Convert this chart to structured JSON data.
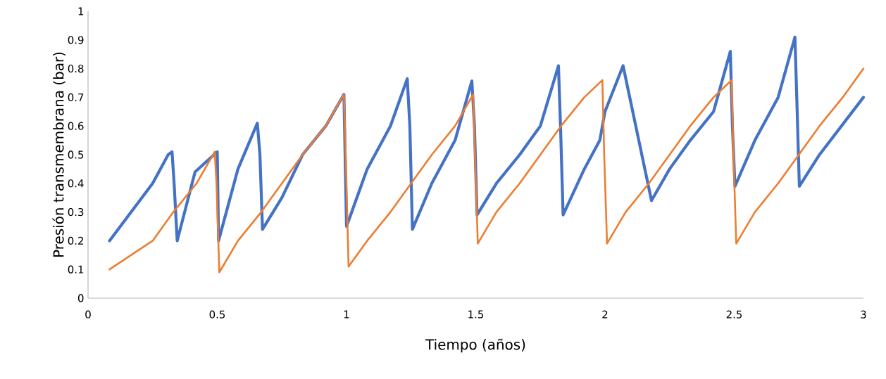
{
  "chart_data": {
    "type": "line",
    "xlabel": "Tiempo (años)",
    "ylabel": "Presión transmembrana (bar)",
    "xlim": [
      0,
      3
    ],
    "ylim": [
      0,
      1
    ],
    "xticks": [
      0,
      0.5,
      1,
      1.5,
      2,
      2.5,
      3
    ],
    "yticks": [
      0,
      0.1,
      0.2,
      0.3,
      0.4,
      0.5,
      0.6,
      0.7,
      0.8,
      0.9,
      1
    ],
    "grid": false,
    "legend": false,
    "line_style": "solid",
    "marker": "none",
    "series": [
      {
        "color": "#4472c4",
        "x": [
          0.083,
          0.25,
          0.31,
          0.325,
          0.333,
          0.345,
          0.414,
          0.5,
          0.505,
          0.58,
          0.655,
          0.665,
          0.675,
          0.75,
          0.83,
          0.92,
          0.99,
          1.0,
          1.08,
          1.17,
          1.235,
          1.245,
          1.255,
          1.33,
          1.42,
          1.485,
          1.495,
          1.505,
          1.58,
          1.67,
          1.75,
          1.82,
          1.828,
          1.838,
          1.92,
          1.98,
          2.0,
          2.07,
          2.18,
          2.25,
          2.33,
          2.42,
          2.485,
          2.493,
          2.503,
          2.58,
          2.67,
          2.735,
          2.742,
          2.752,
          2.83,
          3.0
        ],
        "values": [
          0.2,
          0.4,
          0.5,
          0.51,
          0.4,
          0.2,
          0.44,
          0.51,
          0.2,
          0.45,
          0.61,
          0.5,
          0.24,
          0.35,
          0.5,
          0.6,
          0.71,
          0.25,
          0.45,
          0.6,
          0.765,
          0.6,
          0.24,
          0.4,
          0.55,
          0.757,
          0.6,
          0.29,
          0.4,
          0.5,
          0.6,
          0.81,
          0.6,
          0.29,
          0.45,
          0.55,
          0.65,
          0.81,
          0.34,
          0.45,
          0.55,
          0.65,
          0.86,
          0.6,
          0.39,
          0.55,
          0.7,
          0.91,
          0.7,
          0.39,
          0.5,
          0.7
        ]
      },
      {
        "color": "#ed7d31",
        "x": [
          0.083,
          0.25,
          0.33,
          0.42,
          0.49,
          0.497,
          0.508,
          0.58,
          0.67,
          0.75,
          0.83,
          0.92,
          0.99,
          0.997,
          1.008,
          1.08,
          1.17,
          1.25,
          1.33,
          1.42,
          1.49,
          1.497,
          1.508,
          1.58,
          1.67,
          1.75,
          1.83,
          1.92,
          1.99,
          1.997,
          2.008,
          2.08,
          2.17,
          2.25,
          2.33,
          2.42,
          2.49,
          2.497,
          2.508,
          2.58,
          2.67,
          2.75,
          2.83,
          2.92,
          3.0
        ],
        "values": [
          0.1,
          0.2,
          0.3,
          0.4,
          0.51,
          0.4,
          0.09,
          0.2,
          0.3,
          0.4,
          0.5,
          0.6,
          0.71,
          0.5,
          0.11,
          0.2,
          0.3,
          0.4,
          0.5,
          0.6,
          0.71,
          0.5,
          0.19,
          0.3,
          0.4,
          0.5,
          0.6,
          0.7,
          0.76,
          0.5,
          0.19,
          0.3,
          0.4,
          0.5,
          0.6,
          0.7,
          0.76,
          0.5,
          0.19,
          0.3,
          0.4,
          0.5,
          0.6,
          0.7,
          0.8
        ]
      }
    ]
  }
}
